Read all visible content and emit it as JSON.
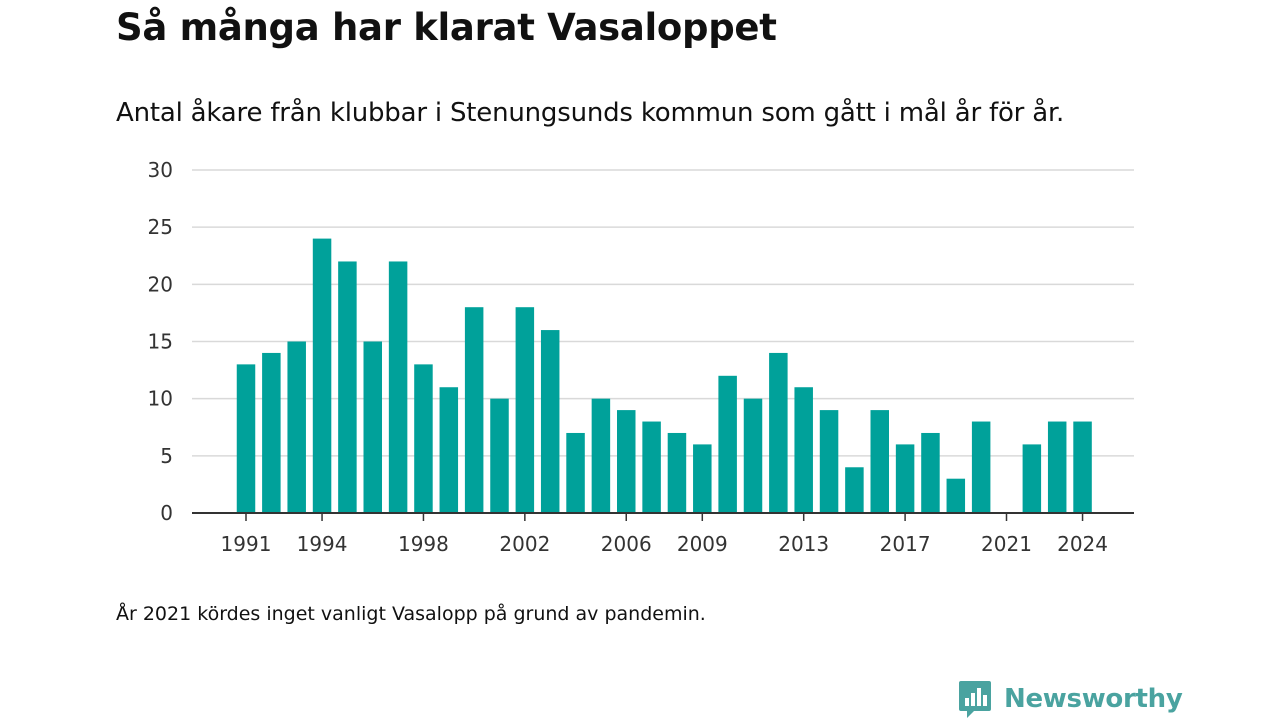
{
  "title": "Så många har klarat Vasaloppet",
  "subtitle": "Antal åkare från klubbar i Stenungsunds kommun som gått i mål år för år.",
  "note": "År 2021 kördes inget vanligt Vasalopp på grund av pandemin.",
  "brand": {
    "name": "Newsworthy",
    "color": "#4aa3a0",
    "icon": "newsworthy-logo-icon"
  },
  "chart_data": {
    "type": "bar",
    "title": "Så många har klarat Vasaloppet",
    "subtitle": "Antal åkare från klubbar i Stenungsunds kommun som gått i mål år för år.",
    "xlabel": "",
    "ylabel": "",
    "ylim": [
      0,
      30
    ],
    "yticks": [
      0,
      5,
      10,
      15,
      20,
      25,
      30
    ],
    "xtick_labels": [
      1991,
      1994,
      1998,
      2002,
      2006,
      2009,
      2013,
      2017,
      2021,
      2024
    ],
    "grid": "horizontal",
    "legend": "none",
    "bar_color": "#00a19a",
    "categories": [
      1991,
      1992,
      1993,
      1994,
      1995,
      1996,
      1997,
      1998,
      1999,
      2000,
      2001,
      2002,
      2003,
      2004,
      2005,
      2006,
      2007,
      2008,
      2009,
      2010,
      2011,
      2012,
      2013,
      2014,
      2015,
      2016,
      2017,
      2018,
      2019,
      2020,
      2021,
      2022,
      2023,
      2024
    ],
    "values": [
      13,
      14,
      15,
      24,
      22,
      15,
      22,
      13,
      11,
      18,
      10,
      18,
      16,
      7,
      10,
      9,
      8,
      7,
      6,
      12,
      10,
      14,
      11,
      9,
      4,
      9,
      6,
      7,
      3,
      8,
      0,
      6,
      8,
      8
    ]
  }
}
